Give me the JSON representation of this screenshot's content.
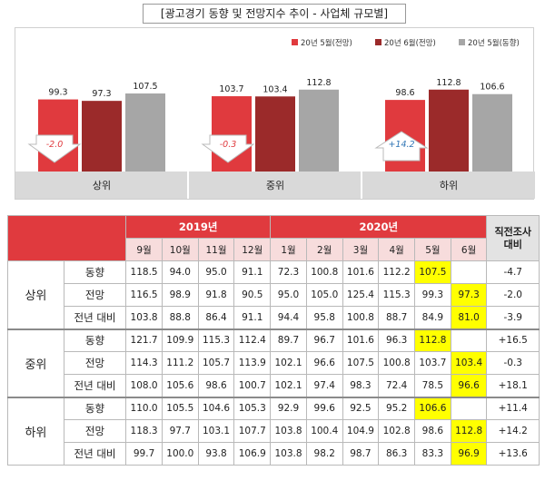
{
  "title": "[광고경기 동향 및 전망지수 추이 - 사업체 규모별]",
  "chart_data": {
    "type": "bar",
    "title": "[광고경기 동향 및 전망지수 추이 - 사업체 규모별]",
    "categories": [
      "상위",
      "중위",
      "하위"
    ],
    "series": [
      {
        "name": "20년 5월(전망)",
        "values": [
          99.3,
          103.7,
          98.6
        ],
        "color": "#e03a3e"
      },
      {
        "name": "20년 6월(전망)",
        "values": [
          97.3,
          103.4,
          112.8
        ],
        "color": "#9b2a2a"
      },
      {
        "name": "20년 5월(동향)",
        "values": [
          107.5,
          112.8,
          106.6
        ],
        "color": "#a6a6a6"
      }
    ],
    "arrows": [
      {
        "label": "-2.0",
        "direction": "down",
        "color": "#e03a3e"
      },
      {
        "label": "-0.3",
        "direction": "down",
        "color": "#e03a3e"
      },
      {
        "label": "+14.2",
        "direction": "up",
        "color": "#2f75b5"
      }
    ],
    "legend_position": "top-right",
    "grid": false
  },
  "table": {
    "year_2019": "2019년",
    "year_2020": "2020년",
    "last_col_header": "직전조사\n대비",
    "months": [
      "9월",
      "10월",
      "11월",
      "12월",
      "1월",
      "2월",
      "3월",
      "4월",
      "5월",
      "6월"
    ],
    "groups": [
      {
        "name": "상위",
        "rows": [
          {
            "label": "동향",
            "values": [
              "118.5",
              "94.0",
              "95.0",
              "91.1",
              "72.3",
              "100.8",
              "101.6",
              "112.2",
              "107.5",
              ""
            ],
            "diff": "-4.7",
            "highlight": 8
          },
          {
            "label": "전망",
            "values": [
              "116.5",
              "98.9",
              "91.8",
              "90.5",
              "95.0",
              "105.0",
              "125.4",
              "115.3",
              "99.3",
              "97.3"
            ],
            "diff": "-2.0",
            "highlight": 9
          },
          {
            "label": "전년 대비",
            "values": [
              "103.8",
              "88.8",
              "86.4",
              "91.1",
              "94.4",
              "95.8",
              "100.8",
              "88.7",
              "84.9",
              "81.0"
            ],
            "diff": "-3.9",
            "highlight": 9
          }
        ]
      },
      {
        "name": "중위",
        "rows": [
          {
            "label": "동향",
            "values": [
              "121.7",
              "109.9",
              "115.3",
              "112.4",
              "89.7",
              "96.7",
              "101.6",
              "96.3",
              "112.8",
              ""
            ],
            "diff": "+16.5",
            "highlight": 8
          },
          {
            "label": "전망",
            "values": [
              "114.3",
              "111.2",
              "105.7",
              "113.9",
              "102.1",
              "96.6",
              "107.5",
              "100.8",
              "103.7",
              "103.4"
            ],
            "diff": "-0.3",
            "highlight": 9
          },
          {
            "label": "전년 대비",
            "values": [
              "108.0",
              "105.6",
              "98.6",
              "100.7",
              "102.1",
              "97.4",
              "98.3",
              "72.4",
              "78.5",
              "96.6"
            ],
            "diff": "+18.1",
            "highlight": 9
          }
        ]
      },
      {
        "name": "하위",
        "rows": [
          {
            "label": "동향",
            "values": [
              "110.0",
              "105.5",
              "104.6",
              "105.3",
              "92.9",
              "99.6",
              "92.5",
              "95.2",
              "106.6",
              ""
            ],
            "diff": "+11.4",
            "highlight": 8
          },
          {
            "label": "전망",
            "values": [
              "118.3",
              "97.7",
              "103.1",
              "107.7",
              "103.8",
              "100.4",
              "104.9",
              "102.8",
              "98.6",
              "112.8"
            ],
            "diff": "+14.2",
            "highlight": 9
          },
          {
            "label": "전년 대비",
            "values": [
              "99.7",
              "100.0",
              "93.8",
              "106.9",
              "103.8",
              "98.2",
              "98.7",
              "86.3",
              "83.3",
              "96.9"
            ],
            "diff": "+13.6",
            "highlight": 9
          }
        ]
      }
    ]
  }
}
